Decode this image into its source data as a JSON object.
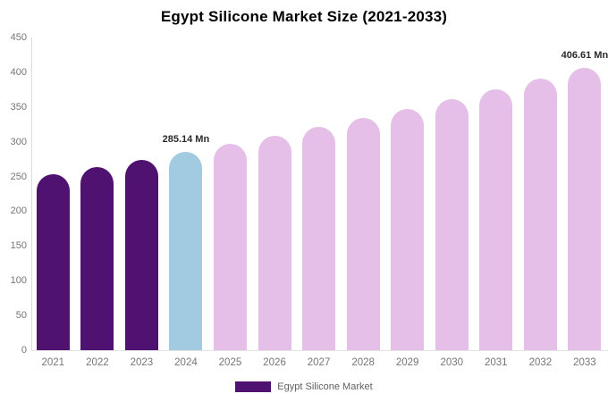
{
  "title": "Egypt Silicone Market Size (2021-2033)",
  "colors": {
    "historical_bar": "#4F1271",
    "current_year_bar": "#A2CBE1",
    "forecast_bar": "#E5BFE8",
    "axis_text": "#757575",
    "data_label_text": "#2B2B2B"
  },
  "legend": {
    "label": "Egypt Silicone Market",
    "swatch_color": "#4F1271"
  },
  "chart_data": {
    "type": "bar",
    "title": "Egypt Silicone Market Size (2021-2033)",
    "unit": "Mn",
    "categories": [
      "2021",
      "2022",
      "2023",
      "2024",
      "2025",
      "2026",
      "2027",
      "2028",
      "2029",
      "2030",
      "2031",
      "2032",
      "2033"
    ],
    "values": [
      253.26,
      263.45,
      274.05,
      285.14,
      296.61,
      308.54,
      320.95,
      333.86,
      347.29,
      361.26,
      375.79,
      390.91,
      406.61
    ],
    "bar_roles": [
      "historical",
      "historical",
      "historical",
      "current",
      "forecast",
      "forecast",
      "forecast",
      "forecast",
      "forecast",
      "forecast",
      "forecast",
      "forecast",
      "forecast"
    ],
    "data_labels": [
      {
        "year": "2024",
        "text": "285.14 Mn"
      },
      {
        "year": "2033",
        "text": "406.61 Mn"
      }
    ],
    "xlabel": "",
    "ylabel": "",
    "ylim": [
      0,
      450
    ],
    "y_ticks": [
      0,
      50,
      100,
      150,
      200,
      250,
      300,
      350,
      400,
      450
    ],
    "grid": false,
    "legend_position": "bottom",
    "legend_entries": [
      "Egypt Silicone Market"
    ]
  }
}
